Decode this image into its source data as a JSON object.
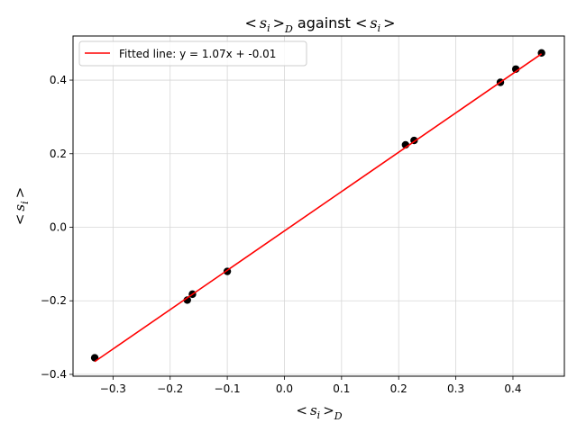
{
  "chart_data": {
    "type": "scatter",
    "title": "< s_i >_D against < s_i >",
    "title_parts": {
      "a": "<",
      "b": "s",
      "c": "i",
      "d": ">",
      "e": "D",
      "f": " against ",
      "g": "<",
      "h": "s",
      "i": "i",
      "j": ">"
    },
    "xlabel_parts": {
      "a": "<",
      "b": "s",
      "c": "i",
      "d": ">",
      "e": "D"
    },
    "ylabel_parts": {
      "a": "<",
      "b": "s",
      "c": "i",
      "d": ">"
    },
    "xlim": [
      -0.37,
      0.49
    ],
    "ylim": [
      -0.405,
      0.52
    ],
    "x_ticks": [
      -0.3,
      -0.2,
      -0.1,
      0.0,
      0.1,
      0.2,
      0.3,
      0.4
    ],
    "x_tick_labels": [
      "−0.3",
      "−0.2",
      "−0.1",
      "0.0",
      "0.1",
      "0.2",
      "0.3",
      "0.4"
    ],
    "y_ticks": [
      -0.4,
      -0.2,
      0.0,
      0.2,
      0.4
    ],
    "y_tick_labels": [
      "−0.4",
      "−0.2",
      "0.0",
      "0.2",
      "0.4"
    ],
    "grid": true,
    "legend_position": "top-left",
    "series": [
      {
        "kind": "scatter",
        "color": "#000000",
        "points": [
          {
            "x": -0.332,
            "y": -0.355
          },
          {
            "x": -0.17,
            "y": -0.198
          },
          {
            "x": -0.161,
            "y": -0.182
          },
          {
            "x": -0.1,
            "y": -0.12
          },
          {
            "x": 0.212,
            "y": 0.224
          },
          {
            "x": 0.227,
            "y": 0.236
          },
          {
            "x": 0.378,
            "y": 0.394
          },
          {
            "x": 0.405,
            "y": 0.43
          },
          {
            "x": 0.45,
            "y": 0.474
          }
        ]
      },
      {
        "kind": "line",
        "name": "Fitted line: y = 1.07x + -0.01",
        "color": "#ff0000",
        "slope": 1.07,
        "intercept": -0.01,
        "x_range": [
          -0.332,
          0.45
        ]
      }
    ]
  }
}
